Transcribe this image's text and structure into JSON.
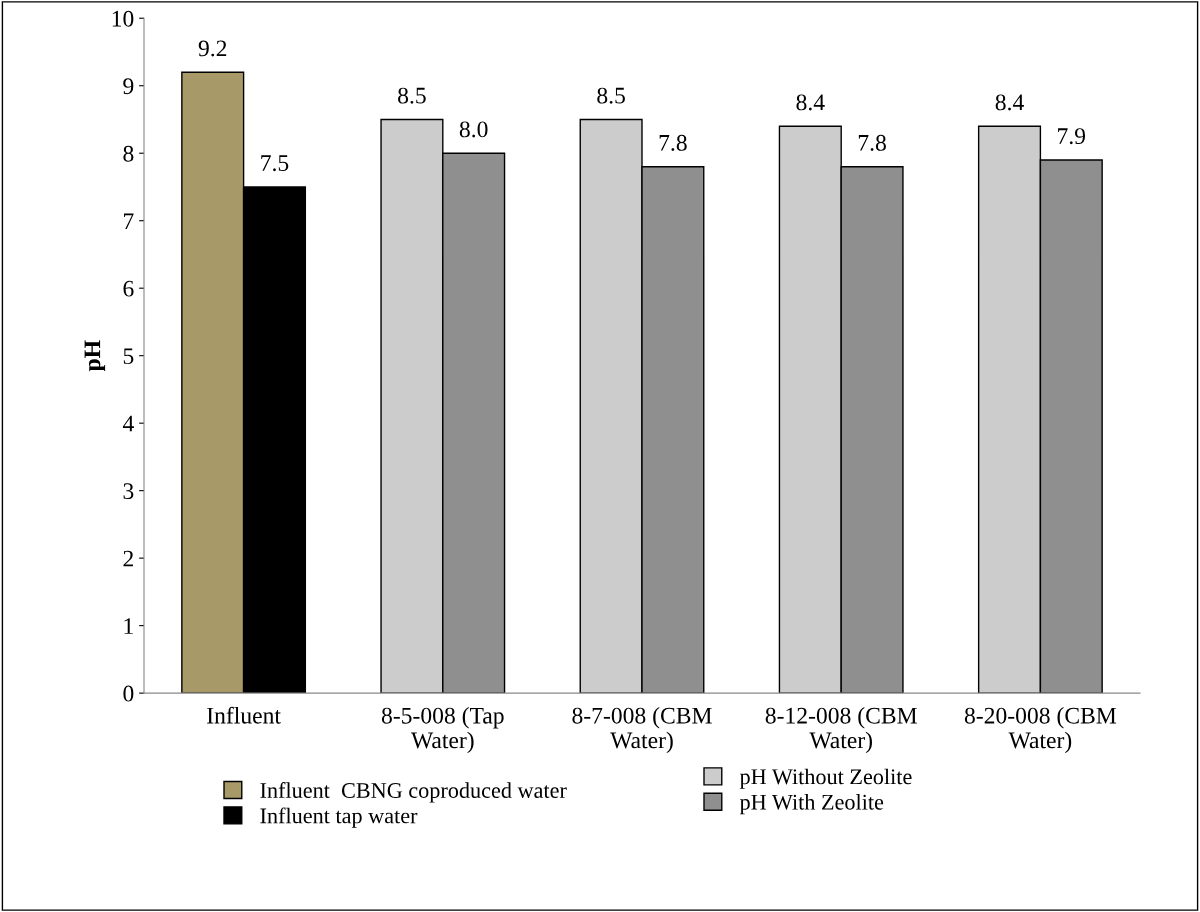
{
  "chart_data": {
    "type": "bar",
    "ylabel": "pH",
    "categories": [
      "Influent",
      "8-5-008 (Tap\nWater)",
      "8-7-008 (CBM\nWater)",
      "8-12-008 (CBM\nWater)",
      "8-20-008 (CBM\nWater)"
    ],
    "series": [
      {
        "name": "Influent  CBNG coproduced water",
        "color": "#a89a68",
        "values": [
          9.2,
          null,
          null,
          null,
          null
        ],
        "value_labels": [
          "9.2",
          null,
          null,
          null,
          null
        ]
      },
      {
        "name": "Influent tap water",
        "color": "#000000",
        "values": [
          7.5,
          null,
          null,
          null,
          null
        ],
        "value_labels": [
          "7.5",
          null,
          null,
          null,
          null
        ]
      },
      {
        "name": "pH Without Zeolite",
        "color": "#cccccc",
        "values": [
          null,
          8.5,
          8.5,
          8.4,
          8.4
        ],
        "value_labels": [
          null,
          "8.5",
          "8.5",
          "8.4",
          "8.4"
        ]
      },
      {
        "name": "pH With Zeolite",
        "color": "#8f8f8f",
        "values": [
          null,
          8.0,
          7.8,
          7.8,
          7.9
        ],
        "value_labels": [
          null,
          "8.0",
          "7.8",
          "7.8",
          "7.9"
        ]
      }
    ],
    "ylim": [
      0,
      10
    ],
    "yticks": [
      0,
      1,
      2,
      3,
      4,
      5,
      6,
      7,
      8,
      9,
      10
    ],
    "grid": false,
    "legend": "bottom"
  }
}
